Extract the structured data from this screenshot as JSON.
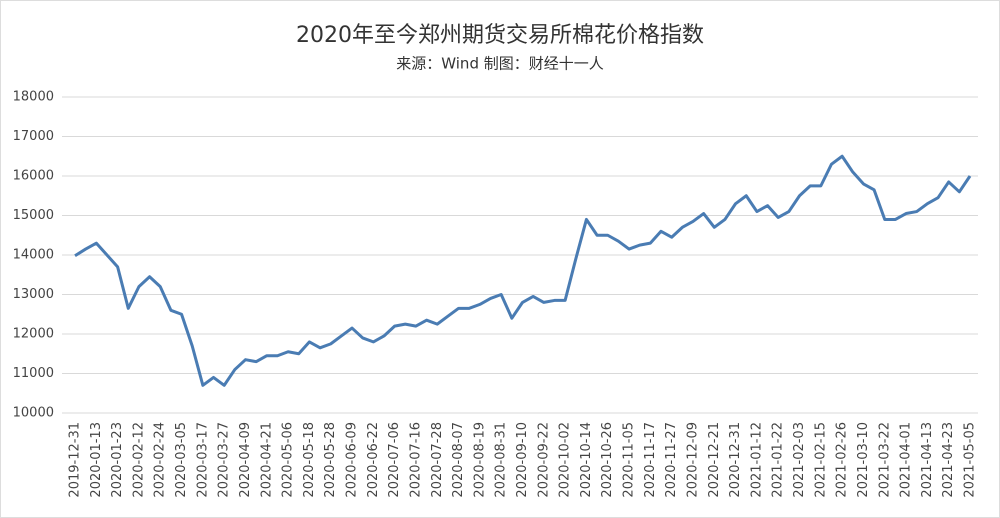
{
  "chart_data": {
    "type": "line",
    "title": "2020年至今郑州期货交易所棉花价格指数",
    "subtitle": "来源：Wind 制图：财经十一人",
    "categories": [
      "2019-12-31",
      null,
      "2020-01-13",
      null,
      "2020-01-23",
      null,
      "2020-02-12",
      null,
      "2020-02-24",
      null,
      "2020-03-05",
      null,
      "2020-03-17",
      null,
      "2020-03-27",
      null,
      "2020-04-09",
      null,
      "2020-04-21",
      null,
      "2020-05-06",
      null,
      "2020-05-18",
      null,
      "2020-05-28",
      null,
      "2020-06-09",
      null,
      "2020-06-22",
      null,
      "2020-07-06",
      null,
      "2020-07-16",
      null,
      "2020-07-28",
      null,
      "2020-08-07",
      null,
      "2020-08-19",
      null,
      "2020-08-31",
      null,
      "2020-09-10",
      null,
      "2020-09-22",
      null,
      "2020-10-02",
      null,
      "2020-10-14",
      null,
      "2020-10-26",
      null,
      "2020-11-05",
      null,
      "2020-11-17",
      null,
      "2020-11-27",
      null,
      "2020-12-09",
      null,
      "2020-12-21",
      null,
      "2020-12-31",
      null,
      "2021-01-12",
      null,
      "2021-01-22",
      null,
      "2021-02-03",
      null,
      "2021-02-15",
      null,
      "2021-02-26",
      null,
      "2021-03-10",
      null,
      "2021-03-22",
      null,
      "2021-04-01",
      null,
      "2021-04-13",
      null,
      "2021-04-23",
      null,
      "2021-05-05"
    ],
    "values": [
      13980,
      14150,
      14300,
      14000,
      13700,
      12650,
      13200,
      13450,
      13200,
      12600,
      12500,
      11700,
      10700,
      10900,
      10700,
      11100,
      11350,
      11300,
      11450,
      11450,
      11550,
      11500,
      11800,
      11650,
      11750,
      11950,
      12150,
      11900,
      11800,
      11950,
      12200,
      12250,
      12200,
      12350,
      12250,
      12450,
      12650,
      12650,
      12750,
      12900,
      13000,
      12400,
      12800,
      12950,
      12800,
      12850,
      12850,
      13900,
      14900,
      14500,
      14500,
      14350,
      14150,
      14250,
      14300,
      14600,
      14450,
      14700,
      14850,
      15050,
      14700,
      14900,
      15300,
      15500,
      15100,
      15250,
      14950,
      15100,
      15500,
      15750,
      15750,
      16300,
      16500,
      16100,
      15800,
      15650,
      14900,
      14900,
      15050,
      15100,
      15300,
      15450,
      15850,
      15600,
      16000
    ],
    "color": "#4a7cb3",
    "ylim": [
      10000,
      18000
    ],
    "yticks": [
      10000,
      11000,
      12000,
      13000,
      14000,
      15000,
      16000,
      17000,
      18000
    ],
    "grid": true
  }
}
